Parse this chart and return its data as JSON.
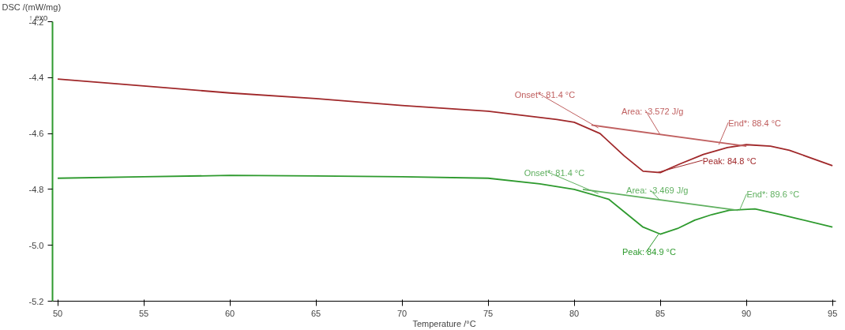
{
  "chart_data": {
    "type": "line",
    "ylabel": "DSC /(mW/mg)",
    "xlabel": "Temperature /°C",
    "xlim": [
      49.7,
      95.2
    ],
    "ylim": [
      -5.2,
      -4.2
    ],
    "xticks": [
      50,
      55,
      60,
      65,
      70,
      75,
      80,
      85,
      90,
      95
    ],
    "yticks": [
      -5.2,
      {
        "value": -5,
        "label": "-5.0"
      },
      -4.8,
      -4.6,
      -4.4,
      -4.2
    ],
    "grid": false,
    "marker": "none",
    "line_style": "solid",
    "series": [
      {
        "color": "#a0282a",
        "x": [
          50,
          55,
          60,
          65,
          70,
          75,
          79,
          80,
          81.5,
          82.9,
          84,
          85,
          86.1,
          87.5,
          88.9,
          90,
          91.4,
          92.5,
          95
        ],
        "values": [
          -4.405,
          -4.43,
          -4.455,
          -4.475,
          -4.5,
          -4.52,
          -4.55,
          -4.56,
          -4.6,
          -4.68,
          -4.735,
          -4.74,
          -4.71,
          -4.675,
          -4.65,
          -4.64,
          -4.645,
          -4.66,
          -4.715
        ]
      },
      {
        "color": "#2e9a2e",
        "x": [
          50,
          55,
          60,
          65,
          70,
          75,
          78,
          80,
          82,
          83,
          84,
          85,
          86,
          87,
          88,
          89,
          90.5,
          92,
          93,
          95
        ],
        "values": [
          -4.76,
          -4.755,
          -4.75,
          -4.752,
          -4.755,
          -4.76,
          -4.78,
          -4.8,
          -4.835,
          -4.885,
          -4.935,
          -4.96,
          -4.94,
          -4.91,
          -4.89,
          -4.875,
          -4.87,
          -4.89,
          -4.905,
          -4.935
        ]
      },
      {
        "color": "#c06060",
        "x": [
          81,
          90
        ],
        "values": [
          -4.57,
          -4.645
        ]
      },
      {
        "color": "#60b060",
        "x": [
          80.5,
          89.5
        ],
        "values": [
          -4.8,
          -4.875
        ]
      }
    ],
    "annotations": [
      "↑ exo",
      {
        "text": "Onset*: 81.4 °C",
        "x": 81.4,
        "y": -4.58
      },
      {
        "text": "Area: -3.572 J/g",
        "x": 85,
        "y": -4.605
      },
      {
        "text": "End*: 88.4 °C",
        "x": 88.4,
        "y": -4.64
      },
      {
        "text": "Peak: 84.8 °C",
        "x": 84.8,
        "y": -4.74
      },
      {
        "text": "Onset*: 81.4 °C",
        "x": 81.4,
        "y": -4.815
      },
      {
        "text": "Area: -3.469 J/g",
        "x": 85,
        "y": -4.84
      },
      {
        "text": "End*: 89.6 °C",
        "x": 89.6,
        "y": -4.875
      },
      {
        "text": "Peak: 84.9 °C",
        "x": 84.9,
        "y": -4.96
      }
    ]
  }
}
